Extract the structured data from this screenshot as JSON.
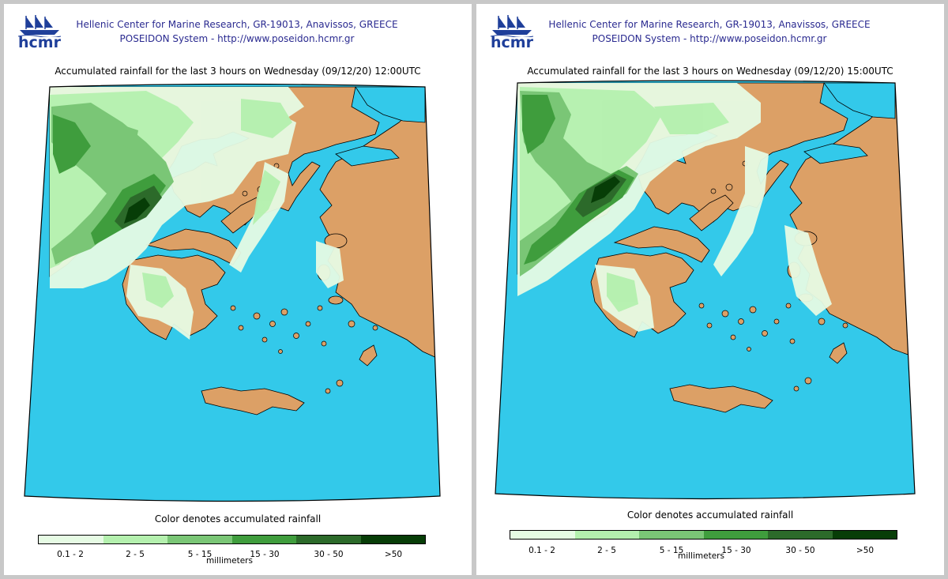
{
  "logo": {
    "text": "hcmr"
  },
  "header": {
    "line1": "Hellenic Center for Marine Research, GR-19013, Anavissos, GREECE",
    "line2": "POSEIDON System - http://www.poseidon.hcmr.gr"
  },
  "panels": [
    {
      "title": "Accumulated rainfall for the last 3 hours on Wednesday (09/12/20) 12:00UTC"
    },
    {
      "title": "Accumulated rainfall for the last 3 hours on Wednesday (09/12/20) 15:00UTC"
    }
  ],
  "legend": {
    "caption": "Color denotes accumulated rainfall",
    "units": "millimeters",
    "classes": [
      {
        "label": "0.1 - 2",
        "color": "#e6fbe4"
      },
      {
        "label": "2 - 5",
        "color": "#b4f0ae"
      },
      {
        "label": "5 - 15",
        "color": "#7ac676"
      },
      {
        "label": "15 - 30",
        "color": "#3f9d3d"
      },
      {
        "label": "30 - 50",
        "color": "#2c6a2a"
      },
      {
        "label": ">50",
        "color": "#073d07"
      }
    ]
  },
  "colors": {
    "sea": "#33c9ea",
    "land": "#dca066",
    "coast": "#000000",
    "header_text": "#2a2a90"
  }
}
